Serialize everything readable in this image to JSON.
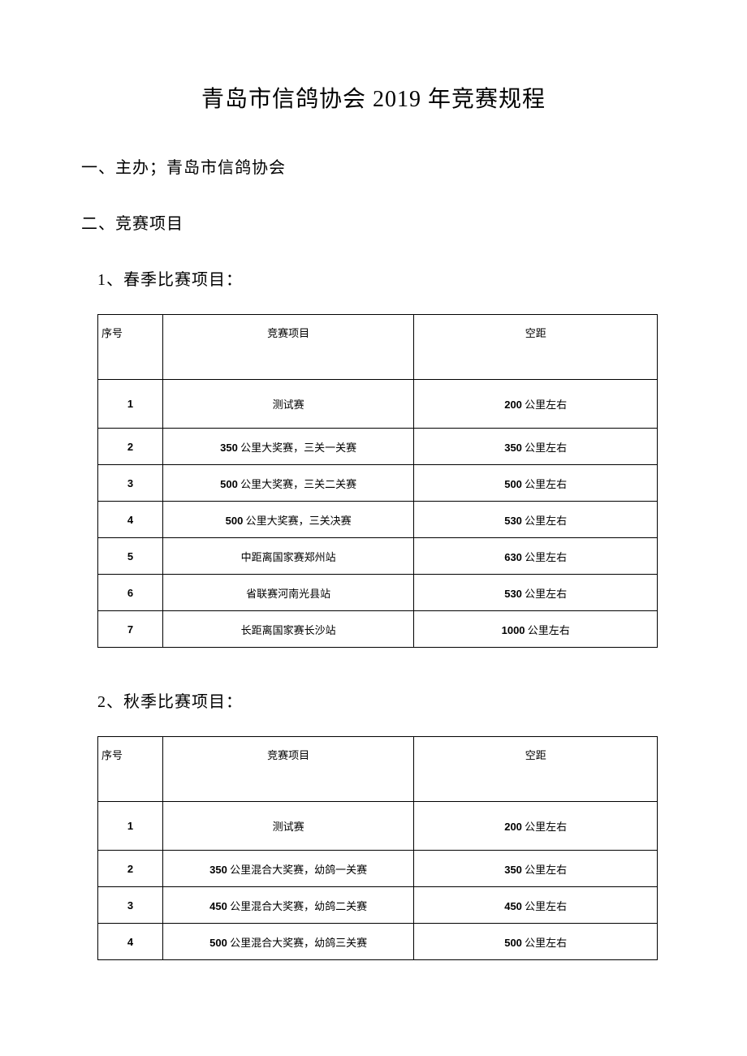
{
  "title": "青岛市信鸽协会 2019 年竞赛规程",
  "section1": "一、主办；青岛市信鸽协会",
  "section2": "二、竞赛项目",
  "spring": {
    "heading": "1、春季比赛项目：",
    "headers": {
      "seq": "序号",
      "event": "竞赛项目",
      "distance": "空距"
    },
    "rows": [
      {
        "seq": "1",
        "event_prefix": "",
        "event_text": "测试赛",
        "dist_num": "200",
        "dist_suffix": " 公里左右",
        "tall": true
      },
      {
        "seq": "2",
        "event_prefix": "350",
        "event_text": " 公里大奖赛，三关一关赛",
        "dist_num": "350",
        "dist_suffix": " 公里左右"
      },
      {
        "seq": "3",
        "event_prefix": "500",
        "event_text": " 公里大奖赛，三关二关赛",
        "dist_num": "500",
        "dist_suffix": " 公里左右"
      },
      {
        "seq": "4",
        "event_prefix": "500",
        "event_text": " 公里大奖赛，三关决赛",
        "dist_num": "530",
        "dist_suffix": " 公里左右"
      },
      {
        "seq": "5",
        "event_prefix": "",
        "event_text": "中距离国家赛郑州站",
        "dist_num": "630",
        "dist_suffix": " 公里左右"
      },
      {
        "seq": "6",
        "event_prefix": "",
        "event_text": "省联赛河南光县站",
        "dist_num": "530",
        "dist_suffix": " 公里左右"
      },
      {
        "seq": "7",
        "event_prefix": "",
        "event_text": "长距离国家赛长沙站",
        "dist_num": "1000",
        "dist_suffix": " 公里左右"
      }
    ]
  },
  "autumn": {
    "heading": "2、秋季比赛项目：",
    "headers": {
      "seq": "序号",
      "event": "竞赛项目",
      "distance": "空距"
    },
    "rows": [
      {
        "seq": "1",
        "event_prefix": "",
        "event_text": "测试赛",
        "dist_num": "200",
        "dist_suffix": " 公里左右",
        "tall": true
      },
      {
        "seq": "2",
        "event_prefix": "350",
        "event_text": " 公里混合大奖赛，幼鸽一关赛",
        "dist_num": "350",
        "dist_suffix": " 公里左右"
      },
      {
        "seq": "3",
        "event_prefix": "450",
        "event_text": " 公里混合大奖赛，幼鸽二关赛",
        "dist_num": "450",
        "dist_suffix": " 公里左右"
      },
      {
        "seq": "4",
        "event_prefix": "500",
        "event_text": " 公里混合大奖赛，幼鸽三关赛",
        "dist_num": "500",
        "dist_suffix": " 公里左右"
      }
    ]
  },
  "colors": {
    "background": "#ffffff",
    "text": "#000000",
    "border": "#000000"
  }
}
